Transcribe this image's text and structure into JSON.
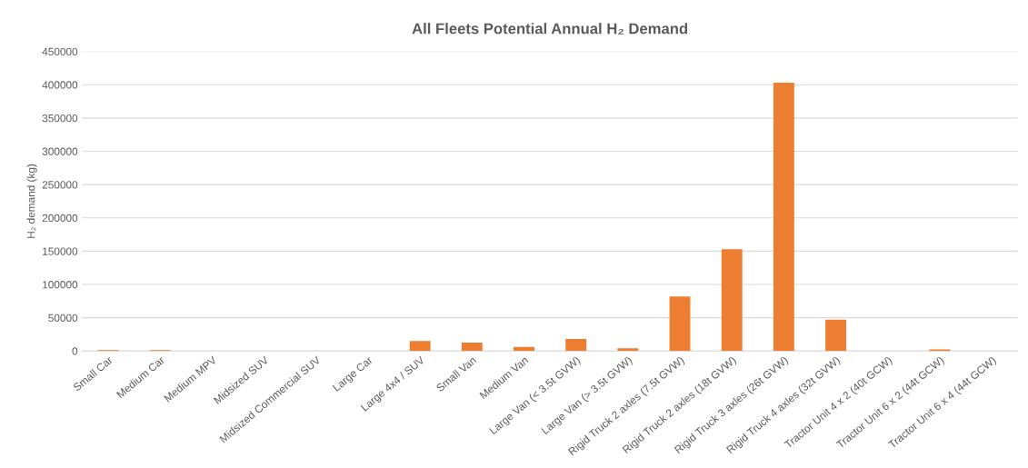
{
  "chart_data": {
    "type": "bar",
    "title": "All Fleets Potential Annual H₂ Demand",
    "ylabel": "H₂ demand (kg)",
    "categories": [
      "Small Car",
      "Medium Car",
      "Medium MPV",
      "Midsized SUV",
      "Midsized Commercial SUV",
      "Large Car",
      "Large 4x4 / SUV",
      "Small Van",
      "Medium Van",
      "Large Van (< 3.5t GVW)",
      "Large Van (> 3.5t GVW)",
      "Rigid Truck 2 axles (7.5t GVW)",
      "Rigid Truck 2 axles (18t GVW)",
      "Rigid Truck 3 axles (26t GVW)",
      "Rigid Truck 4 axles (32t GVW)",
      "Tractor Unit 4 x 2 (40t GCW)",
      "Tractor Unit 6 x 2 (44t GCW)",
      "Tractor Unit 6 x 4 (44t GCW)"
    ],
    "values": [
      1500,
      1500,
      0,
      0,
      0,
      0,
      15000,
      12500,
      6000,
      18000,
      4000,
      82000,
      153000,
      403000,
      47000,
      0,
      2500,
      0
    ],
    "color": "#ed7d31",
    "ylim": [
      0,
      450000
    ],
    "yticks": [
      0,
      50000,
      100000,
      150000,
      200000,
      250000,
      300000,
      350000,
      400000,
      450000
    ],
    "grid": "y",
    "legend": false
  }
}
